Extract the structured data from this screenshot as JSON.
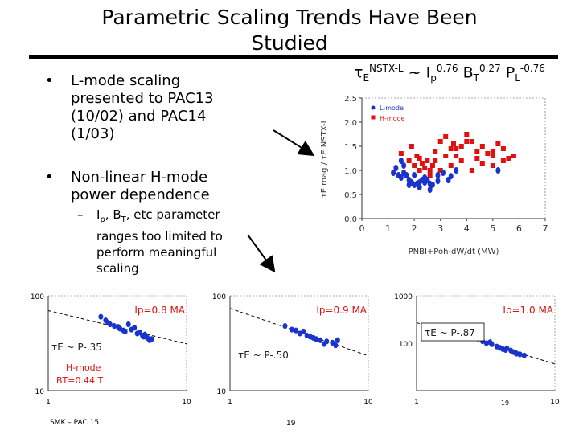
{
  "slide": {
    "title_line1": "Parametric Scaling Trends Have Been",
    "title_line2": "Studied",
    "bullet1": [
      "L-mode scaling",
      "presented to PAC13",
      "(10/02) and PAC14",
      "(1/03)"
    ],
    "bullet2": [
      "Non-linear H-mode",
      "power dependence"
    ],
    "sub_bullet": [
      "I",
      "p",
      ", B",
      "T",
      ", etc parameter",
      "ranges too limited to",
      "perform meaningful",
      "scaling"
    ],
    "bullet_symbol": "•",
    "dash_symbol": "–",
    "formula": {
      "tau": "τ",
      "sub_E": "E",
      "sup_label": "NSTX-L",
      "tilde": " ~ I",
      "sub_p": "p",
      "sup_ip": "0.76",
      "b": " B",
      "sub_T": "T",
      "sup_bt": "0.27",
      "p": " P",
      "sub_L": "L",
      "sup_pl": "-0.76"
    },
    "footer_left": "SMK – PAC 15",
    "footer_center": "19",
    "footer_right": "19"
  },
  "colors": {
    "lmode": "#1a33cc",
    "hmode": "#e01010",
    "annot": "#e01010",
    "fit": "#000000"
  },
  "chart_data": [
    {
      "type": "scatter",
      "title": "",
      "xlabel": "PNBI+Poh-dW/dt (MW)",
      "ylabel": "τE mag / τE NSTX-L",
      "xlim": [
        0,
        7
      ],
      "ylim": [
        0,
        2.5
      ],
      "xticks": [
        0,
        1,
        2,
        3,
        4,
        5,
        6,
        7
      ],
      "yticks": [
        "0.0",
        "0.5",
        "1.0",
        "1.5",
        "2.0",
        "2.5"
      ],
      "legend": [
        "L-mode",
        "H-mode"
      ],
      "series": [
        {
          "name": "L-mode",
          "x": [
            1.2,
            1.4,
            1.5,
            1.6,
            1.7,
            1.8,
            1.9,
            2.0,
            2.1,
            2.2,
            2.3,
            2.4,
            2.5,
            2.6,
            2.7,
            2.9,
            3.1,
            3.3,
            3.6,
            1.3,
            1.5,
            2.0,
            2.4,
            1.8,
            2.2,
            5.2,
            1.6,
            2.9,
            3.4,
            2.6
          ],
          "y": [
            0.95,
            0.9,
            0.85,
            1.1,
            0.9,
            0.8,
            0.75,
            0.7,
            0.72,
            0.75,
            0.8,
            0.75,
            0.8,
            0.72,
            0.7,
            0.9,
            0.95,
            0.8,
            1.0,
            1.05,
            1.2,
            0.9,
            0.85,
            0.7,
            0.65,
            1.0,
            0.95,
            0.78,
            0.88,
            0.6
          ]
        },
        {
          "name": "H-mode",
          "x": [
            1.5,
            1.8,
            2.0,
            2.1,
            2.2,
            2.3,
            2.4,
            2.5,
            2.6,
            2.7,
            2.8,
            3.0,
            3.2,
            3.4,
            3.5,
            3.6,
            3.8,
            4.0,
            4.2,
            4.4,
            4.6,
            4.8,
            5.0,
            5.2,
            5.4,
            5.6,
            5.8,
            2.6,
            3.0,
            3.4,
            3.8,
            4.2,
            4.6,
            5.0,
            2.2,
            2.8,
            3.6,
            4.4,
            5.4,
            1.9,
            3.2,
            4.0,
            5.0
          ],
          "y": [
            1.35,
            1.2,
            1.1,
            1.3,
            1.0,
            1.15,
            1.05,
            1.2,
            1.0,
            1.1,
            1.4,
            1.6,
            1.7,
            1.45,
            1.55,
            1.3,
            1.5,
            1.75,
            1.6,
            1.4,
            1.5,
            1.35,
            1.3,
            1.55,
            1.45,
            1.25,
            1.3,
            0.9,
            1.0,
            1.1,
            1.2,
            1.0,
            1.15,
            1.1,
            1.25,
            1.2,
            1.45,
            1.25,
            1.2,
            1.5,
            1.3,
            1.6,
            1.4
          ]
        }
      ]
    },
    {
      "type": "scatter",
      "xscale": "log",
      "yscale": "log",
      "xlim": [
        1,
        10
      ],
      "ylim": [
        10,
        100
      ],
      "xtick_labels": [
        "1",
        "10"
      ],
      "ytick_labels": [
        "10",
        "100"
      ],
      "annotation_ip": "Ip=0.8 MA",
      "annotation_fit": "τE ~ P-.35",
      "annotation_mode": "H-mode",
      "annotation_bt": "BT=0.44 T",
      "fit_exponent": -0.35,
      "series": [
        {
          "name": "data",
          "x": [
            2.4,
            2.6,
            2.8,
            3.0,
            3.3,
            3.6,
            4.0,
            4.4,
            4.8,
            5.2,
            5.6,
            4.2,
            3.8,
            4.6,
            5.0,
            2.7,
            3.2,
            3.5,
            4.9,
            5.4
          ],
          "y": [
            60,
            55,
            50,
            48,
            45,
            42,
            44,
            40,
            38,
            36,
            35,
            46,
            50,
            41,
            39,
            52,
            47,
            43,
            37,
            34
          ]
        }
      ]
    },
    {
      "type": "scatter",
      "xscale": "log",
      "yscale": "log",
      "xlim": [
        1,
        10
      ],
      "ylim": [
        10,
        100
      ],
      "xtick_labels": [
        "1",
        "10"
      ],
      "ytick_labels": [
        "10",
        "100"
      ],
      "annotation_ip": "Ip=0.9 MA",
      "annotation_fit": "τE ~ P-.50",
      "fit_exponent": -0.5,
      "series": [
        {
          "name": "data",
          "x": [
            2.5,
            2.8,
            3.2,
            3.6,
            4.0,
            4.5,
            5.0,
            5.5,
            3.4,
            4.2,
            4.8,
            5.8,
            6.0,
            3.0,
            3.8
          ],
          "y": [
            48,
            44,
            40,
            38,
            36,
            34,
            33,
            32,
            42,
            35,
            31,
            30,
            34,
            43,
            37
          ]
        }
      ]
    },
    {
      "type": "scatter",
      "xscale": "log",
      "yscale": "log",
      "xlim": [
        1,
        10
      ],
      "ylim": [
        10,
        1000
      ],
      "xtick_labels": [
        "1",
        "10"
      ],
      "ytick_labels": [
        "100",
        "1000"
      ],
      "annotation_ip": "Ip=1.0 MA",
      "annotation_fit": "τE ~ P-.87",
      "fit_exponent": -0.87,
      "series": [
        {
          "name": "data",
          "x": [
            3.0,
            3.2,
            3.5,
            3.8,
            4.0,
            4.2,
            4.5,
            4.8,
            5.0,
            5.3,
            5.6,
            6.0,
            3.4,
            4.4,
            5.2
          ],
          "y": [
            110,
            100,
            95,
            85,
            80,
            75,
            78,
            70,
            65,
            60,
            58,
            55,
            105,
            72,
            62
          ]
        }
      ]
    }
  ]
}
